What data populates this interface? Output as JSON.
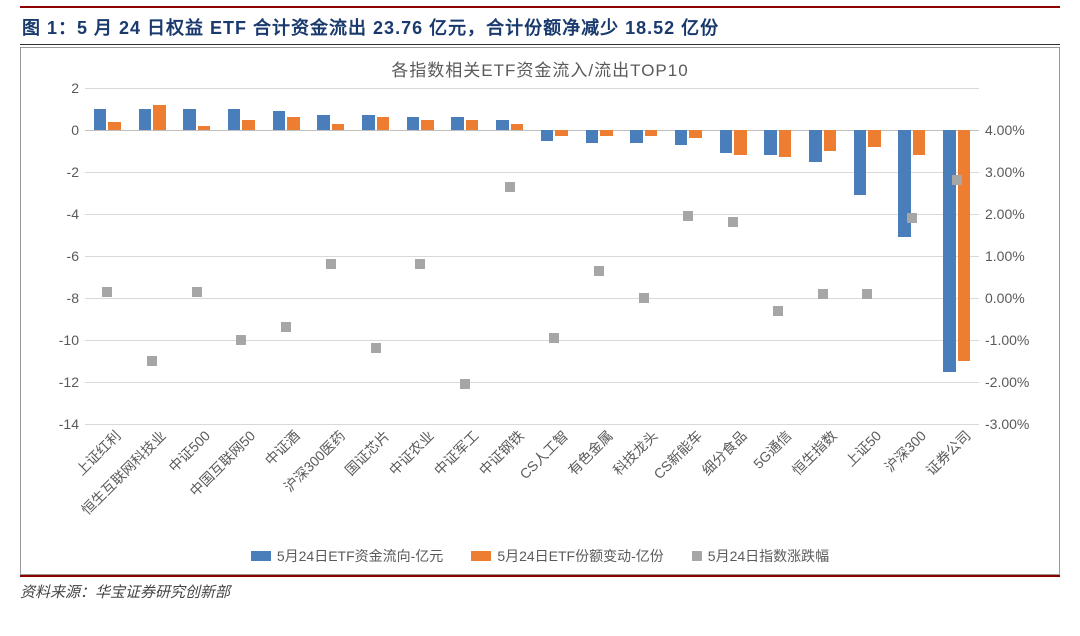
{
  "figure_label": "图 1：5 月 24 日权益 ETF 合计资金流出 23.76 亿元，合计份额净减少 18.52 亿份",
  "source": "资料来源：华宝证券研究创新部",
  "chart": {
    "type": "bar+scatter-dual-axis",
    "title": "各指数相关ETF资金流入/流出TOP10",
    "background_color": "#ffffff",
    "grid_color": "#d9d9d9",
    "text_color": "#5a5a5a",
    "title_fontsize": 17,
    "label_fontsize": 14,
    "categories": [
      "上证红利",
      "恒生互联网科技业",
      "中证500",
      "中国互联网50",
      "中证酒",
      "沪深300医药",
      "国证芯片",
      "中证农业",
      "中证军工",
      "中证钢铁",
      "CS人工智",
      "有色金属",
      "科技龙头",
      "CS新能车",
      "细分食品",
      "5G通信",
      "恒生指数",
      "上证50",
      "沪深300",
      "证券公司"
    ],
    "left_axis": {
      "min": -14,
      "max": 2,
      "ticks": [
        -14,
        -12,
        -10,
        -8,
        -6,
        -4,
        -2,
        0,
        2
      ]
    },
    "right_axis": {
      "min": -3.0,
      "max": 4.0,
      "ticks": [
        -3,
        -2,
        -1,
        0,
        1,
        2,
        3,
        4
      ],
      "suffix": ".00%"
    },
    "series": [
      {
        "name": "5月24日ETF资金流向-亿元",
        "type": "bar",
        "axis": "left",
        "color": "#4a7ebb",
        "bar_width": 0.28,
        "values": [
          1.0,
          1.0,
          1.0,
          1.0,
          0.9,
          0.7,
          0.7,
          0.6,
          0.6,
          0.5,
          -0.5,
          -0.6,
          -0.6,
          -0.7,
          -1.1,
          -1.2,
          -1.5,
          -3.1,
          -5.1,
          -11.5
        ]
      },
      {
        "name": "5月24日ETF份额变动-亿份",
        "type": "bar",
        "axis": "left",
        "color": "#ed7d31",
        "bar_width": 0.28,
        "values": [
          0.4,
          1.2,
          0.2,
          0.5,
          0.6,
          0.3,
          0.6,
          0.5,
          0.5,
          0.3,
          -0.3,
          -0.3,
          -0.3,
          -0.4,
          -1.2,
          -1.3,
          -1.0,
          -0.8,
          -1.2,
          -11.0
        ]
      },
      {
        "name": "5月24日指数涨跌幅",
        "type": "scatter",
        "axis": "right",
        "color": "#a6a6a6",
        "marker": "square",
        "marker_size": 10,
        "values": [
          0.15,
          -1.5,
          0.15,
          -1.0,
          -0.7,
          0.8,
          -1.2,
          0.8,
          -2.05,
          2.65,
          -0.95,
          0.65,
          0.0,
          1.95,
          1.8,
          -0.3,
          0.1,
          0.1,
          1.9,
          2.8
        ]
      }
    ],
    "legend_position": "bottom",
    "xlabel_rotation": -45
  }
}
